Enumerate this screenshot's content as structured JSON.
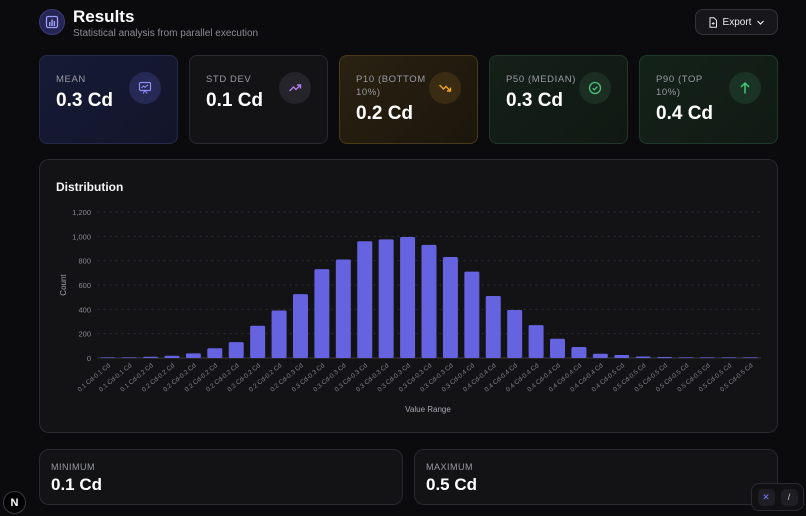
{
  "header": {
    "title": "Results",
    "subtitle": "Statistical analysis from parallel execution",
    "export_label": "Export"
  },
  "cards": [
    {
      "label": "MEAN",
      "value": "0.3 Cd",
      "icon": "presentation-chart-icon",
      "accent": "#8b8cf5"
    },
    {
      "label": "STD DEV",
      "value": "0.1 Cd",
      "icon": "trending-up-icon",
      "accent": "#b07cf0"
    },
    {
      "label": "P10 (BOTTOM 10%)",
      "value": "0.2 Cd",
      "icon": "trending-down-icon",
      "accent": "#f0a623"
    },
    {
      "label": "P50 (MEDIAN)",
      "value": "0.3 Cd",
      "icon": "check-circle-icon",
      "accent": "#4ec07a"
    },
    {
      "label": "P90 (TOP 10%)",
      "value": "0.4 Cd",
      "icon": "arrow-up-icon",
      "accent": "#3ecb7c"
    }
  ],
  "chart": {
    "title": "Distribution"
  },
  "chart_data": {
    "type": "bar",
    "title": "Distribution",
    "xlabel": "Value Range",
    "ylabel": "Count",
    "ylim": [
      0,
      1200
    ],
    "yticks": [
      "0",
      "200",
      "400",
      "600",
      "800",
      "1,000",
      "1,200"
    ],
    "grid": true,
    "bar_color": "#6563e0",
    "categories": [
      "0.1 Cd-0.1 Cd",
      "0.1 Cd-0.1 Cd",
      "0.1 Cd-0.2 Cd",
      "0.2 Cd-0.2 Cd",
      "0.2 Cd-0.2 Cd",
      "0.2 Cd-0.2 Cd",
      "0.2 Cd-0.2 Cd",
      "0.2 Cd-0.2 Cd",
      "0.2 Cd-0.2 Cd",
      "0.2 Cd-0.3 Cd",
      "0.3 Cd-0.3 Cd",
      "0.3 Cd-0.3 Cd",
      "0.3 Cd-0.3 Cd",
      "0.3 Cd-0.3 Cd",
      "0.3 Cd-0.3 Cd",
      "0.3 Cd-0.3 Cd",
      "0.3 Cd-0.3 Cd",
      "0.3 Cd-0.4 Cd",
      "0.4 Cd-0.4 Cd",
      "0.4 Cd-0.4 Cd",
      "0.4 Cd-0.4 Cd",
      "0.4 Cd-0.4 Cd",
      "0.4 Cd-0.4 Cd",
      "0.4 Cd-0.4 Cd",
      "0.4 Cd-0.5 Cd",
      "0.5 Cd-0.5 Cd",
      "0.5 Cd-0.5 Cd",
      "0.5 Cd-0.5 Cd",
      "0.5 Cd-0.5 Cd",
      "0.5 Cd-0.5 Cd",
      "0.5 Cd-0.5 Cd"
    ],
    "values": [
      2,
      4,
      10,
      18,
      38,
      80,
      130,
      265,
      390,
      525,
      730,
      810,
      960,
      975,
      995,
      930,
      830,
      710,
      510,
      395,
      270,
      158,
      90,
      35,
      25,
      12,
      8,
      3,
      2,
      1,
      1
    ]
  },
  "stats": {
    "minimum_label": "MINIMUM",
    "minimum_value": "0.1 Cd",
    "maximum_label": "MAXIMUM",
    "maximum_value": "0.5 Cd"
  },
  "misc": {
    "badge_letter": "N",
    "devtools_x": "✕",
    "devtools_slash": "/"
  }
}
